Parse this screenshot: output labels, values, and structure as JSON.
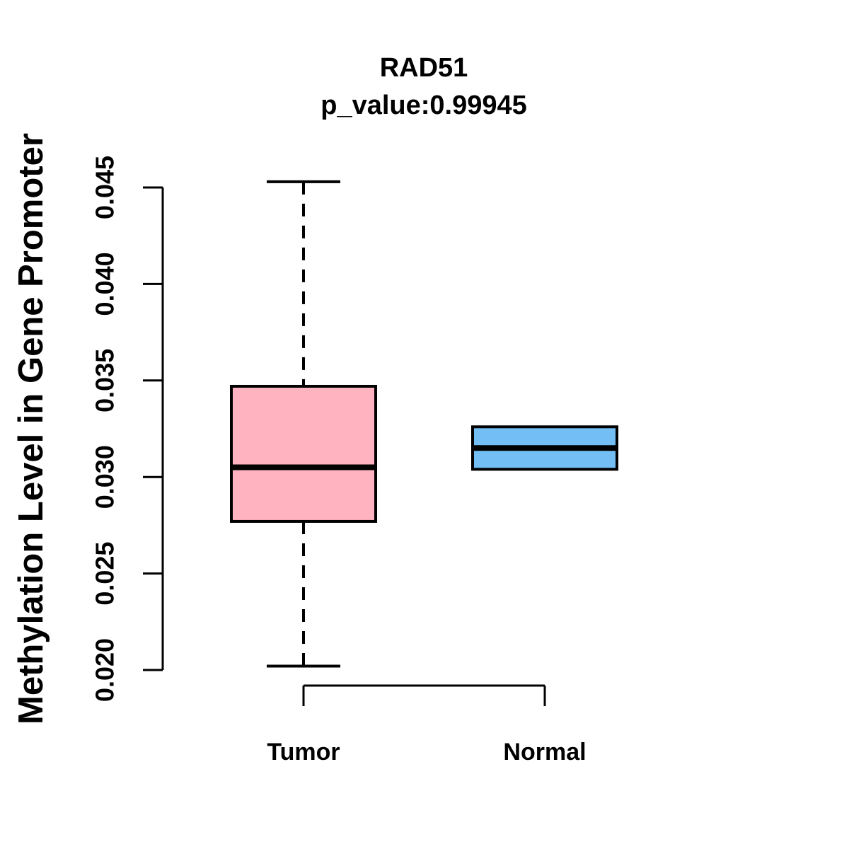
{
  "chart_data": {
    "type": "boxplot",
    "title": "RAD51",
    "subtitle": "p_value:0.99945",
    "p_value": 0.99945,
    "ylabel": "Methylation Level in Gene Promoter",
    "xlabel": "",
    "categories": [
      "Tumor",
      "Normal"
    ],
    "ylim": [
      0.02,
      0.045
    ],
    "yticks": [
      0.02,
      0.025,
      0.03,
      0.035,
      0.04,
      0.045
    ],
    "ytick_labels": [
      "0.020",
      "0.025",
      "0.030",
      "0.035",
      "0.040",
      "0.045"
    ],
    "grid": false,
    "legend": "none",
    "stroke_color": "#000000",
    "background_color": "#FFFFFF",
    "series": [
      {
        "name": "Tumor",
        "fill_color": "#FFB3C1",
        "lower_whisker": 0.0202,
        "q1": 0.0277,
        "median": 0.0305,
        "q3": 0.0347,
        "upper_whisker": 0.0453
      },
      {
        "name": "Normal",
        "fill_color": "#73BFF5",
        "lower_whisker": 0.0304,
        "q1": 0.0304,
        "median": 0.0315,
        "q3": 0.0326,
        "upper_whisker": 0.0326
      }
    ]
  }
}
